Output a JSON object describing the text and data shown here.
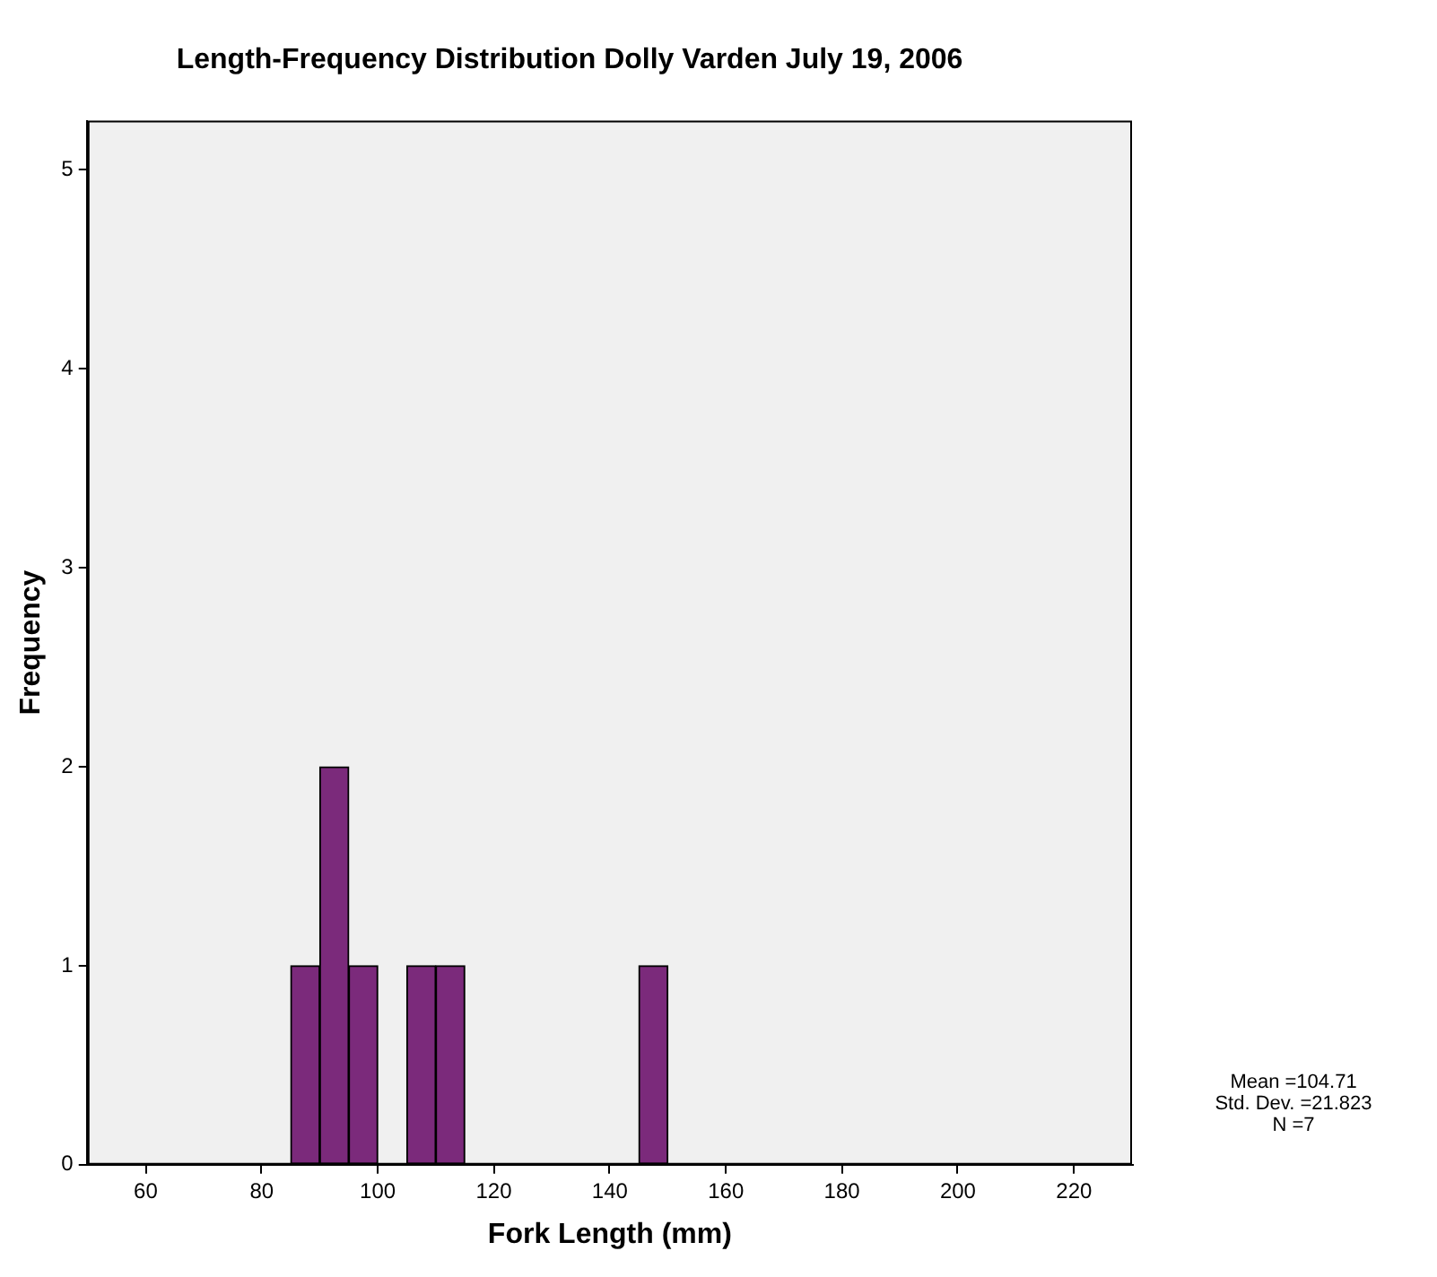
{
  "chart_data": {
    "type": "histogram",
    "title": "Length-Frequency Distribution Dolly Varden July 19, 2006",
    "xlabel": "Fork Length (mm)",
    "ylabel": "Frequency",
    "bins": [
      85,
      90,
      95,
      100,
      105,
      110,
      115,
      120,
      125,
      130,
      135,
      140,
      145,
      150
    ],
    "values": [
      1,
      2,
      1,
      0,
      1,
      1,
      0,
      0,
      0,
      0,
      0,
      0,
      1
    ],
    "color": "#7b2a7b",
    "xlim": [
      50,
      230
    ],
    "xticks": [
      60,
      80,
      100,
      120,
      140,
      160,
      180,
      200,
      220
    ],
    "ylim": [
      0,
      5.25
    ],
    "yticks": [
      0,
      1,
      2,
      3,
      4,
      5
    ],
    "grid": false,
    "legend": false,
    "annotations": [
      "Mean =104.71",
      "Std. Dev. =21.823",
      "N =7"
    ]
  }
}
